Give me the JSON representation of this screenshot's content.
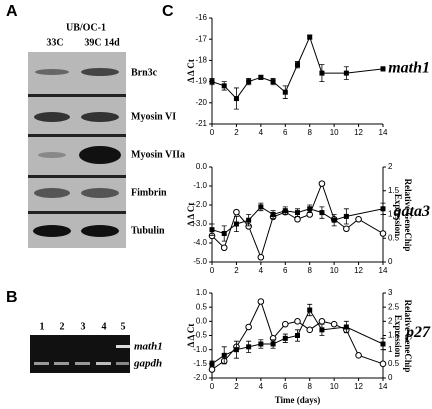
{
  "panel_a": {
    "label": "A",
    "cell_line": "UB/OC-1",
    "conditions": [
      "33C",
      "39C 14d"
    ],
    "proteins": [
      "Brn3c",
      "Myosin VI",
      "Myosin VIIa",
      "Fimbrin",
      "Tubulin"
    ]
  },
  "panel_b": {
    "label": "B",
    "lanes": [
      "1",
      "2",
      "3",
      "4",
      "5"
    ],
    "genes": [
      "math1",
      "gapdh"
    ]
  },
  "panel_c": {
    "label": "C"
  },
  "chart_data": [
    {
      "type": "line",
      "gene": "math1",
      "ylabel": "Δ Δ Ct",
      "xlim": [
        0,
        14
      ],
      "xticks": [
        0,
        2,
        4,
        6,
        8,
        10,
        12,
        14
      ],
      "ylim": [
        -21,
        -16
      ],
      "yticks": [
        -16,
        -17,
        -18,
        -19,
        -20,
        -21
      ],
      "series": [
        {
          "color": "#000000",
          "marker": "square",
          "x": [
            0,
            1,
            2,
            3,
            4,
            5,
            6,
            7,
            8,
            9,
            11,
            14
          ],
          "values": [
            -19.0,
            -19.2,
            -19.8,
            -19.0,
            -18.8,
            -19.0,
            -19.5,
            -18.2,
            -16.9,
            -18.6,
            -18.6,
            -18.4
          ],
          "errors": [
            0.15,
            0.2,
            0.5,
            0.15,
            0.1,
            0.15,
            0.3,
            0.15,
            0.1,
            0.4,
            0.3,
            0.1
          ]
        }
      ]
    },
    {
      "type": "line",
      "gene": "gata3",
      "ylabel": "Δ Δ Ct",
      "y2label": "Relative GeneChip Expression",
      "xlim": [
        0,
        14
      ],
      "xticks": [
        0,
        2,
        4,
        6,
        8,
        10,
        12,
        14
      ],
      "ylim": [
        -5,
        0
      ],
      "yticks": [
        {
          "value": 0,
          "label": "0.0"
        },
        {
          "value": -1,
          "label": "-1.0"
        },
        {
          "value": -2,
          "label": "-2.0"
        },
        {
          "value": -3,
          "label": "-3.0"
        },
        {
          "value": -4,
          "label": "-4.0"
        },
        {
          "value": -5,
          "label": "-5.0"
        }
      ],
      "y2lim": [
        0,
        2
      ],
      "y2ticks": [
        2,
        1.5,
        1,
        0.5,
        0
      ],
      "series": [
        {
          "color": "#000000",
          "marker": "circle",
          "axis": "y2",
          "x": [
            0,
            1,
            2,
            3,
            4,
            5,
            6,
            7,
            8,
            9,
            10,
            11,
            12,
            14
          ],
          "values": [
            0.55,
            0.3,
            1.05,
            0.75,
            0.1,
            0.95,
            1.05,
            0.9,
            1.0,
            1.65,
            0.9,
            0.7,
            0.9,
            0.6
          ]
        },
        {
          "color": "#000000",
          "marker": "square",
          "x": [
            0,
            1,
            2,
            3,
            4,
            5,
            6,
            7,
            8,
            9,
            10,
            11,
            14
          ],
          "values": [
            -3.3,
            -3.5,
            -3.0,
            -2.8,
            -2.1,
            -2.5,
            -2.3,
            -2.4,
            -2.2,
            -2.4,
            -2.8,
            -2.6,
            -2.2
          ],
          "errors": [
            0.3,
            0.4,
            0.4,
            0.3,
            0.2,
            0.2,
            0.2,
            0.2,
            0.2,
            0.3,
            0.3,
            0.4,
            0.3
          ]
        }
      ]
    },
    {
      "type": "line",
      "gene": "p27",
      "ylabel": "Δ Δ Ct",
      "y2label": "Relative GeneChip Expression",
      "xlabel": "Time (days)",
      "xlim": [
        0,
        14
      ],
      "xticks": [
        0,
        2,
        4,
        6,
        8,
        10,
        12,
        14
      ],
      "ylim": [
        -2,
        1
      ],
      "yticks": [
        {
          "value": 1,
          "label": "1.0"
        },
        {
          "value": 0.5,
          "label": "0.5"
        },
        {
          "value": 0,
          "label": "0.0"
        },
        {
          "value": -0.5,
          "label": "-0.5"
        },
        {
          "value": -1,
          "label": "-1.0"
        },
        {
          "value": -1.5,
          "label": "-1.5"
        },
        {
          "value": -2,
          "label": "-2.0"
        }
      ],
      "y2lim": [
        0,
        3
      ],
      "y2ticks": [
        3,
        2.5,
        2,
        1.5,
        1,
        0.5,
        0
      ],
      "series": [
        {
          "color": "#000000",
          "marker": "circle",
          "axis": "y2",
          "x": [
            0,
            1,
            2,
            3,
            4,
            5,
            6,
            7,
            8,
            9,
            10,
            11,
            12,
            14
          ],
          "values": [
            0.3,
            0.6,
            1.1,
            1.8,
            2.7,
            1.4,
            1.9,
            2.0,
            1.7,
            2.0,
            1.9,
            1.7,
            0.8,
            0.5
          ]
        },
        {
          "color": "#000000",
          "marker": "square",
          "x": [
            0,
            1,
            2,
            3,
            4,
            5,
            6,
            7,
            8,
            9,
            11,
            14
          ],
          "values": [
            -1.5,
            -1.2,
            -1.0,
            -0.9,
            -0.8,
            -0.8,
            -0.6,
            -0.5,
            0.4,
            -0.3,
            -0.2,
            -0.8
          ],
          "errors": [
            0.1,
            0.3,
            0.3,
            0.2,
            0.15,
            0.15,
            0.15,
            0.2,
            0.2,
            0.2,
            0.2,
            0.2
          ]
        }
      ]
    }
  ]
}
